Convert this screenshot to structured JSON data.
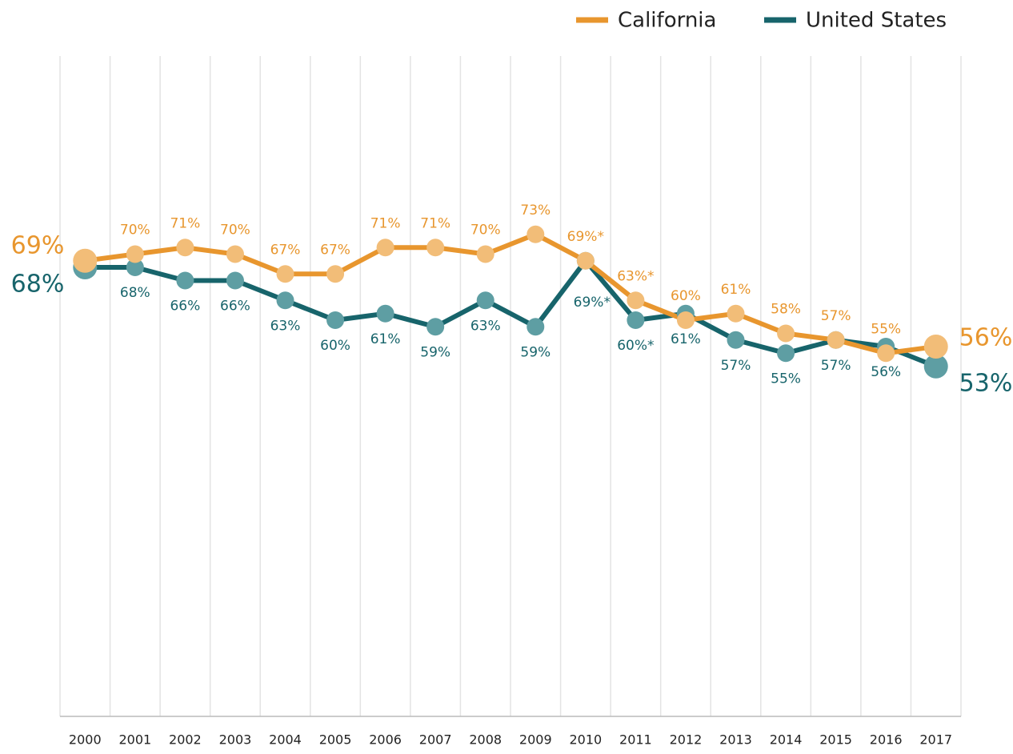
{
  "chart_data": {
    "type": "line",
    "categories": [
      "2000",
      "2001",
      "2002",
      "2003",
      "2004",
      "2005",
      "2006",
      "2007",
      "2008",
      "2009",
      "2010",
      "2011",
      "2012",
      "2013",
      "2014",
      "2015",
      "2016",
      "2017"
    ],
    "ylim": [
      0,
      100
    ],
    "series": [
      {
        "name": "California",
        "color": "#e8962e",
        "marker_color": "#f2bd78",
        "values": [
          69,
          70,
          71,
          70,
          67,
          67,
          71,
          71,
          70,
          73,
          69,
          63,
          60,
          61,
          58,
          57,
          55,
          56
        ],
        "value_labels": [
          "69%",
          "70%",
          "71%",
          "70%",
          "67%",
          "67%",
          "71%",
          "71%",
          "70%",
          "73%",
          "69%*",
          "63%*",
          "60%",
          "61%",
          "58%",
          "57%",
          "55%",
          "56%"
        ]
      },
      {
        "name": "United States",
        "color": "#17646b",
        "marker_color": "#5e9ea3",
        "values": [
          68,
          68,
          66,
          66,
          63,
          60,
          61,
          59,
          63,
          59,
          69,
          60,
          61,
          57,
          55,
          57,
          56,
          53
        ],
        "value_labels": [
          "68%",
          "68%",
          "66%",
          "66%",
          "63%",
          "60%",
          "61%",
          "59%",
          "63%",
          "59%",
          "69%*",
          "60%*",
          "61%",
          "57%",
          "55%",
          "57%",
          "56%",
          "53%"
        ]
      }
    ]
  }
}
